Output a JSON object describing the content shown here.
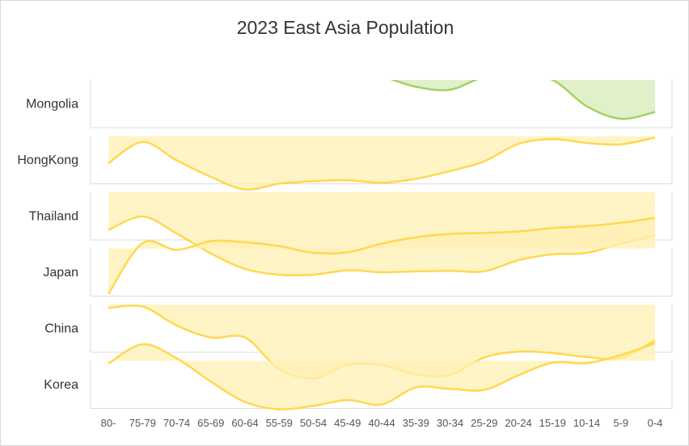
{
  "chart_data": {
    "type": "area",
    "title": "2023 East Asia Population",
    "categories": [
      "80-",
      "75-79",
      "70-74",
      "65-69",
      "60-64",
      "55-59",
      "50-54",
      "45-49",
      "40-44",
      "35-39",
      "30-34",
      "25-29",
      "20-24",
      "15-19",
      "10-14",
      "5-9",
      "0-4"
    ],
    "rows": [
      "Mongolia",
      "HongKong",
      "Thailand",
      "Japan",
      "China",
      "Korea"
    ],
    "series": [
      {
        "name": "Mongolia",
        "color": "#a3d160",
        "fill": "#d5ebb7",
        "values": [
          0.96,
          0.96,
          0.88,
          0.72,
          0.52,
          0.4,
          0.29,
          0.17,
          0.07,
          -0.14,
          -0.2,
          0.06,
          0.08,
          0.0,
          -0.54,
          -0.8,
          -0.66
        ]
      },
      {
        "name": "HongKong",
        "color": "#ffd84d",
        "fill": "#fff0b3",
        "values": [
          -0.56,
          -0.12,
          -0.5,
          -0.84,
          -1.1,
          -0.98,
          -0.93,
          -0.91,
          -0.96,
          -0.88,
          -0.72,
          -0.52,
          -0.16,
          -0.06,
          -0.14,
          -0.17,
          -0.03
        ]
      },
      {
        "name": "Thailand",
        "color": "#ffd84d",
        "fill": "#fff0b3",
        "values": [
          -0.78,
          -0.5,
          -0.85,
          -1.26,
          -1.58,
          -1.7,
          -1.7,
          -1.61,
          -1.65,
          -1.63,
          -1.62,
          -1.63,
          -1.4,
          -1.28,
          -1.25,
          -1.06,
          -0.9
        ]
      },
      {
        "name": "Japan",
        "color": "#ffd84d",
        "fill": "#fff0b3",
        "values": [
          -0.94,
          0.11,
          -0.03,
          0.15,
          0.13,
          0.05,
          -0.09,
          -0.08,
          0.1,
          0.23,
          0.3,
          0.32,
          0.35,
          0.42,
          0.46,
          0.53,
          0.63
        ]
      },
      {
        "name": "China",
        "color": "#ffd84d",
        "fill": "#fff0b3",
        "values": [
          -0.07,
          -0.04,
          -0.43,
          -0.68,
          -0.68,
          -1.33,
          -1.52,
          -1.24,
          -1.25,
          -1.44,
          -1.45,
          -1.09,
          -0.97,
          -1.0,
          -1.08,
          -1.1,
          -0.74
        ]
      },
      {
        "name": "Korea",
        "color": "#ffd84d",
        "fill": "#fff0b3",
        "values": [
          -0.06,
          0.34,
          0.05,
          -0.43,
          -0.85,
          -1.0,
          -0.93,
          -0.81,
          -0.9,
          -0.55,
          -0.58,
          -0.6,
          -0.3,
          -0.04,
          -0.05,
          0.12,
          0.36
        ]
      }
    ]
  }
}
